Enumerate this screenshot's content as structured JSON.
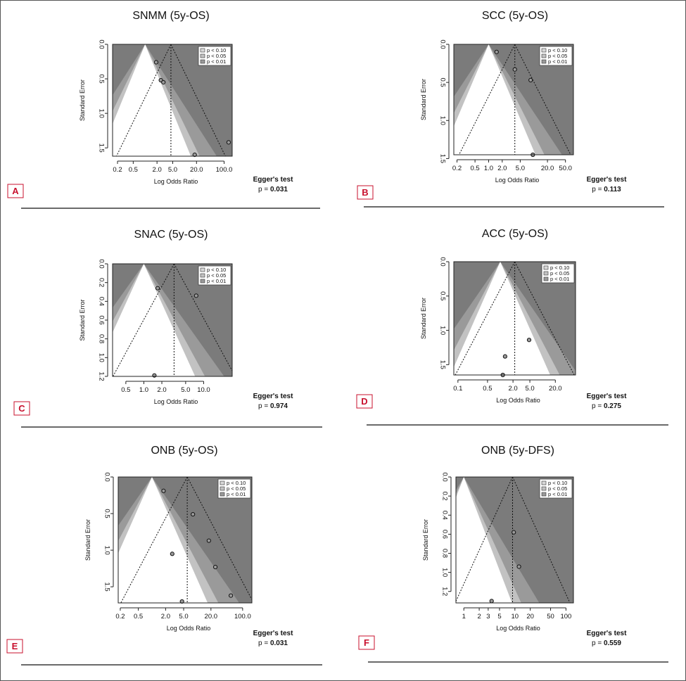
{
  "panels": [
    {
      "letter": "A",
      "title": "SNMM (5y-OS)",
      "xlabel": "Log Odds Ratio",
      "ylabel": "Standard Error",
      "egger_label": "Egger's test",
      "p_prefix": "p = ",
      "p_value": "0.031",
      "legend": [
        "p < 0.10",
        "p < 0.05",
        "p < 0.01"
      ],
      "chart_data": {
        "type": "scatter",
        "x_scale": "log",
        "x_ticks": [
          0.2,
          0.5,
          2.0,
          5.0,
          20.0,
          100.0
        ],
        "x_tick_labels": [
          "0.2",
          "0.5",
          "2.0",
          "5.0",
          "20.0",
          "100.0"
        ],
        "y_ticks": [
          0.0,
          0.5,
          1.0,
          1.5
        ],
        "y_tick_labels": [
          "0.0",
          "0.5",
          "1.0",
          "1.5"
        ],
        "xlim": [
          0.15,
          160
        ],
        "ylim": [
          0,
          1.62
        ],
        "pooled_estimate": 4.5,
        "contour_reference": 1.0,
        "points": [
          {
            "x": 1.9,
            "y": 0.26
          },
          {
            "x": 2.5,
            "y": 0.52
          },
          {
            "x": 2.9,
            "y": 0.55
          },
          {
            "x": 18,
            "y": 1.6
          },
          {
            "x": 130,
            "y": 1.42
          }
        ]
      }
    },
    {
      "letter": "B",
      "title": "SCC (5y-OS)",
      "xlabel": "Log Odds Ratio",
      "ylabel": "Standard Error",
      "egger_label": "Egger's test",
      "p_prefix": "p = ",
      "p_value": "0.113",
      "legend": [
        "p < 0.10",
        "p < 0.05",
        "p < 0.01"
      ],
      "chart_data": {
        "type": "scatter",
        "x_scale": "log",
        "x_ticks": [
          0.2,
          0.5,
          1.0,
          2.0,
          5.0,
          20.0,
          50.0
        ],
        "x_tick_labels": [
          "0.2",
          "0.5",
          "1.0",
          "2.0",
          "5.0",
          "20.0",
          "50.0"
        ],
        "y_ticks": [
          0.0,
          0.5,
          1.0,
          1.5
        ],
        "y_tick_labels": [
          "0.0",
          "0.5",
          "1.0",
          "1.5"
        ],
        "xlim": [
          0.17,
          75
        ],
        "ylim": [
          0,
          1.45
        ],
        "pooled_estimate": 3.8,
        "contour_reference": 1.0,
        "points": [
          {
            "x": 1.5,
            "y": 0.1
          },
          {
            "x": 3.8,
            "y": 0.33
          },
          {
            "x": 8.5,
            "y": 0.47
          },
          {
            "x": 9.5,
            "y": 1.45
          }
        ]
      }
    },
    {
      "letter": "C",
      "title": "SNAC (5y-OS)",
      "xlabel": "Log Odds Ratio",
      "ylabel": "Standard Error",
      "egger_label": "Egger's test",
      "p_prefix": "p = ",
      "p_value": "0.974",
      "legend": [
        "p < 0.10",
        "p < 0.05",
        "p < 0.01"
      ],
      "chart_data": {
        "type": "scatter",
        "x_scale": "log",
        "x_ticks": [
          0.5,
          1.0,
          2.0,
          5.0,
          10.0
        ],
        "x_tick_labels": [
          "0.5",
          "1.0",
          "2.0",
          "5.0",
          "10.0"
        ],
        "y_ticks": [
          0.0,
          0.2,
          0.4,
          0.6,
          0.8,
          1.0,
          1.2
        ],
        "y_tick_labels": [
          "0.0",
          "0.2",
          "0.4",
          "0.6",
          "0.8",
          "1.0",
          "1.2"
        ],
        "xlim": [
          0.3,
          30
        ],
        "ylim": [
          0,
          1.2
        ],
        "pooled_estimate": 3.2,
        "contour_reference": 1.0,
        "points": [
          {
            "x": 1.7,
            "y": 0.26
          },
          {
            "x": 7.5,
            "y": 0.34
          },
          {
            "x": 1.5,
            "y": 1.19
          }
        ]
      }
    },
    {
      "letter": "D",
      "title": "ACC (5y-OS)",
      "xlabel": "Log Odds Ratio",
      "ylabel": "Standard Error",
      "egger_label": "Egger's test",
      "p_prefix": "p = ",
      "p_value": "0.275",
      "legend": [
        "p < 0.10",
        "p < 0.05",
        "p < 0.01"
      ],
      "chart_data": {
        "type": "scatter",
        "x_scale": "log",
        "x_ticks": [
          0.1,
          0.5,
          2.0,
          5.0,
          20.0
        ],
        "x_tick_labels": [
          "0.1",
          "0.5",
          "2.0",
          "5.0",
          "20.0"
        ],
        "y_ticks": [
          0.0,
          0.5,
          1.0,
          1.5
        ],
        "y_tick_labels": [
          "0.0",
          "0.5",
          "1.0",
          "1.5"
        ],
        "xlim": [
          0.08,
          60
        ],
        "ylim": [
          0,
          1.65
        ],
        "pooled_estimate": 2.2,
        "contour_reference": 1.0,
        "points": [
          {
            "x": 1.3,
            "y": 1.38
          },
          {
            "x": 4.8,
            "y": 1.14
          },
          {
            "x": 1.15,
            "y": 1.65
          }
        ]
      }
    },
    {
      "letter": "E",
      "title": "ONB (5y-OS)",
      "xlabel": "Log Odds Ratio",
      "ylabel": "Standard Error",
      "egger_label": "Egger's test",
      "p_prefix": "p = ",
      "p_value": "0.031",
      "legend": [
        "p < 0.10",
        "p < 0.05",
        "p < 0.01"
      ],
      "chart_data": {
        "type": "scatter",
        "x_scale": "log",
        "x_ticks": [
          0.2,
          0.5,
          2.0,
          5.0,
          20.0,
          100.0
        ],
        "x_tick_labels": [
          "0.2",
          "0.5",
          "2.0",
          "5.0",
          "20.0",
          "100.0"
        ],
        "y_ticks": [
          0.0,
          0.5,
          1.0,
          1.5
        ],
        "y_tick_labels": [
          "0.0",
          "0.5",
          "1.0",
          "1.5"
        ],
        "xlim": [
          0.18,
          160
        ],
        "ylim": [
          0,
          1.72
        ],
        "pooled_estimate": 6.0,
        "contour_reference": 1.0,
        "points": [
          {
            "x": 1.8,
            "y": 0.19
          },
          {
            "x": 8,
            "y": 0.51
          },
          {
            "x": 18,
            "y": 0.87
          },
          {
            "x": 25,
            "y": 1.23
          },
          {
            "x": 2.8,
            "y": 1.05
          },
          {
            "x": 55,
            "y": 1.62
          },
          {
            "x": 4.6,
            "y": 1.7
          }
        ]
      }
    },
    {
      "letter": "F",
      "title": "ONB (5y-DFS)",
      "xlabel": "Log Odds Ratio",
      "ylabel": "Standard Error",
      "egger_label": "Egger's test",
      "p_prefix": "p = ",
      "p_value": "0.559",
      "legend": [
        "p < 0.10",
        "p < 0.05",
        "p < 0.01"
      ],
      "chart_data": {
        "type": "scatter",
        "x_scale": "log",
        "x_ticks": [
          1,
          2,
          3,
          5,
          10,
          20,
          50,
          100
        ],
        "x_tick_labels": [
          "1",
          "2",
          "3",
          "5",
          "10",
          "20",
          "50",
          "100"
        ],
        "y_ticks": [
          0.0,
          0.2,
          0.4,
          0.6,
          0.8,
          1.0,
          1.2
        ],
        "y_tick_labels": [
          "0.0",
          "0.2",
          "0.4",
          "0.6",
          "0.8",
          "1.0",
          "1.2"
        ],
        "xlim": [
          0.7,
          140
        ],
        "ylim": [
          0,
          1.32
        ],
        "pooled_estimate": 9.0,
        "contour_reference": 1.0,
        "points": [
          {
            "x": 9.5,
            "y": 0.58
          },
          {
            "x": 12,
            "y": 0.94
          },
          {
            "x": 3.5,
            "y": 1.3
          }
        ]
      }
    }
  ]
}
